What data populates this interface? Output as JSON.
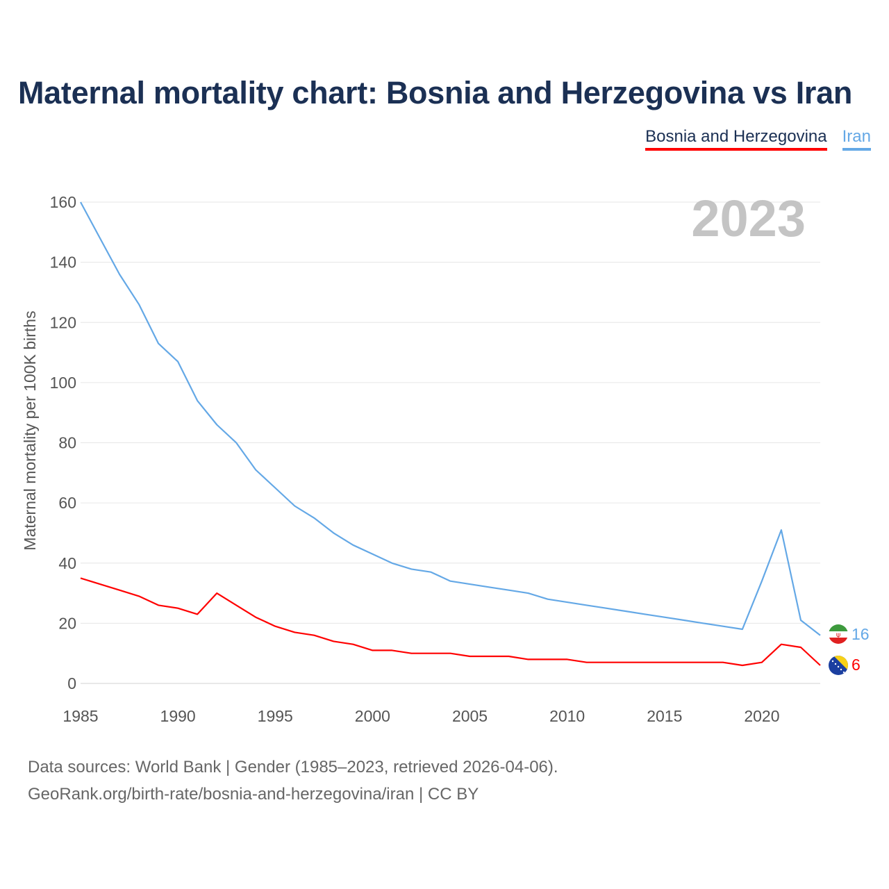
{
  "title": "Maternal mortality chart: Bosnia and Herzegovina vs Iran",
  "legend": [
    {
      "label": "Bosnia and Herzegovina",
      "color": "#ff0000"
    },
    {
      "label": "Iran",
      "color": "#64a8e6"
    }
  ],
  "year_label": "2023",
  "end_labels": {
    "iran": "16",
    "bih": "6"
  },
  "flags": {
    "iran": "iran-flag-icon",
    "bih": "bosnia-flag-icon"
  },
  "source": {
    "line1": "Data sources: World Bank | Gender (1985–2023, retrieved 2026-04-06).",
    "line2": "GeoRank.org/birth-rate/bosnia-and-herzegovina/iran | CC BY"
  },
  "chart_data": {
    "type": "line",
    "title": "Maternal mortality chart: Bosnia and Herzegovina vs Iran",
    "xlabel": "",
    "ylabel": "Maternal mortality per 100K births",
    "xlim": [
      1985,
      2023
    ],
    "ylim": [
      0,
      160
    ],
    "xticks": [
      1985,
      1990,
      1995,
      2000,
      2005,
      2010,
      2015,
      2020
    ],
    "yticks": [
      0,
      20,
      40,
      60,
      80,
      100,
      120,
      140,
      160
    ],
    "x": [
      1985,
      1986,
      1987,
      1988,
      1989,
      1990,
      1991,
      1992,
      1993,
      1994,
      1995,
      1996,
      1997,
      1998,
      1999,
      2000,
      2001,
      2002,
      2003,
      2004,
      2005,
      2006,
      2007,
      2008,
      2009,
      2010,
      2011,
      2012,
      2013,
      2014,
      2015,
      2016,
      2017,
      2018,
      2019,
      2020,
      2021,
      2022,
      2023
    ],
    "series": [
      {
        "name": "Iran",
        "color": "#64a8e6",
        "values": [
          160,
          148,
          136,
          126,
          113,
          107,
          94,
          86,
          80,
          71,
          65,
          59,
          55,
          50,
          46,
          43,
          40,
          38,
          37,
          34,
          33,
          32,
          31,
          30,
          28,
          27,
          26,
          25,
          24,
          23,
          22,
          21,
          20,
          19,
          18,
          34,
          51,
          21,
          16
        ]
      },
      {
        "name": "Bosnia and Herzegovina",
        "color": "#ff0000",
        "values": [
          35,
          33,
          31,
          29,
          26,
          25,
          23,
          30,
          26,
          22,
          19,
          17,
          16,
          14,
          13,
          11,
          11,
          10,
          10,
          10,
          9,
          9,
          9,
          8,
          8,
          8,
          7,
          7,
          7,
          7,
          7,
          7,
          7,
          7,
          6,
          7,
          13,
          12,
          6
        ]
      }
    ],
    "grid": true,
    "legend_position": "top-right"
  }
}
